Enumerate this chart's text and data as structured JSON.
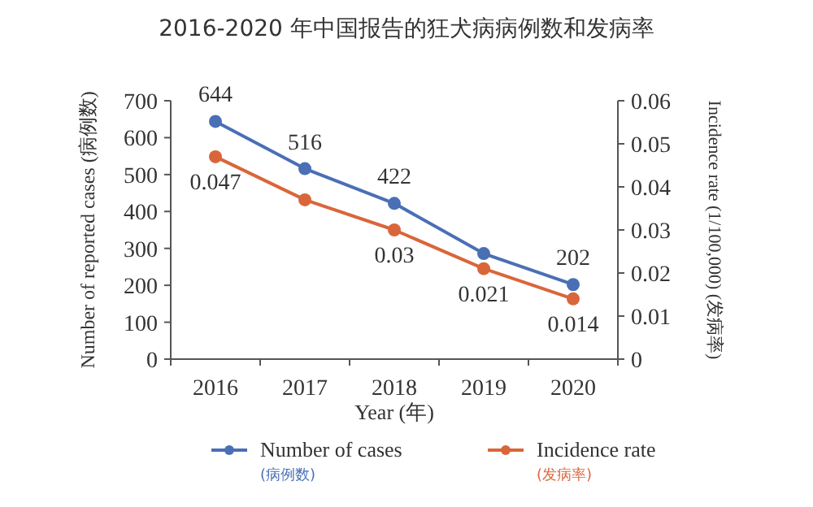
{
  "chart_data": {
    "type": "line",
    "title": "2016-2020 年中国报告的狂犬病病例数和发病率",
    "categories": [
      "2016",
      "2017",
      "2018",
      "2019",
      "2020"
    ],
    "xlabel": "Year (年)",
    "ylabel": "Number of reported cases (病例数)",
    "y2label": "Incidence rate (1/100,000) (发病率)",
    "ylim": [
      0,
      700
    ],
    "yticks": [
      0,
      100,
      200,
      300,
      400,
      500,
      600,
      700
    ],
    "y2lim": [
      0,
      0.06
    ],
    "y2ticks": [
      0,
      0.01,
      0.02,
      0.03,
      0.04,
      0.05,
      0.06
    ],
    "marker": "circle",
    "grid": false,
    "legend": "bottom",
    "series": [
      {
        "name": "Number of cases\n(病例数)",
        "color": "#4a6fb5",
        "values": [
          644,
          516,
          422,
          286,
          202
        ],
        "value_labels": [
          "644",
          "516",
          "422",
          null,
          "202"
        ]
      },
      {
        "name": "Incidence rate\n(发病率)",
        "color": "#d9663a",
        "axis": "y2",
        "values": [
          0.047,
          0.037,
          0.03,
          0.021,
          0.014
        ],
        "value_labels": [
          "0.047",
          null,
          "0.03",
          "0.021",
          "0.014"
        ]
      }
    ]
  }
}
